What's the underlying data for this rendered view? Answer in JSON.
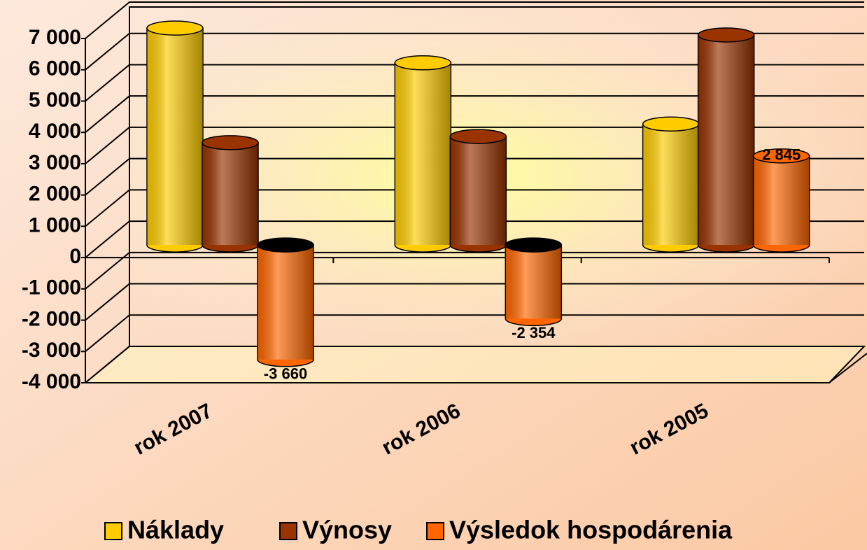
{
  "chart_data": {
    "type": "bar",
    "categories": [
      "rok 2007",
      "rok 2006",
      "rok 2005"
    ],
    "series": [
      {
        "name": "Náklady",
        "color": "#ffcc00",
        "values": [
          6930,
          5820,
          3865
        ]
      },
      {
        "name": "Výnosy",
        "color": "#993300",
        "values": [
          3270,
          3466,
          6710
        ]
      },
      {
        "name": "Výsledok hospodárenia",
        "color": "#ff6600",
        "values": [
          -3660,
          -2354,
          2845
        ],
        "value_labels": [
          "-3 660",
          "-2 354",
          "2 845"
        ]
      }
    ],
    "ylim": [
      -4000,
      7000
    ],
    "yticks": [
      {
        "value": -4000,
        "label": "-4 000"
      },
      {
        "value": -3000,
        "label": "-3 000"
      },
      {
        "value": -2000,
        "label": "-2 000"
      },
      {
        "value": -1000,
        "label": "-1 000"
      },
      0,
      {
        "value": 1000,
        "label": "1 000"
      },
      {
        "value": 2000,
        "label": "2 000"
      },
      {
        "value": 3000,
        "label": "3 000"
      },
      {
        "value": 4000,
        "label": "4 000"
      },
      {
        "value": 5000,
        "label": "5 000"
      },
      {
        "value": 6000,
        "label": "6 000"
      },
      {
        "value": 7000,
        "label": "7 000"
      }
    ],
    "grid": true,
    "legend": "bottom"
  }
}
